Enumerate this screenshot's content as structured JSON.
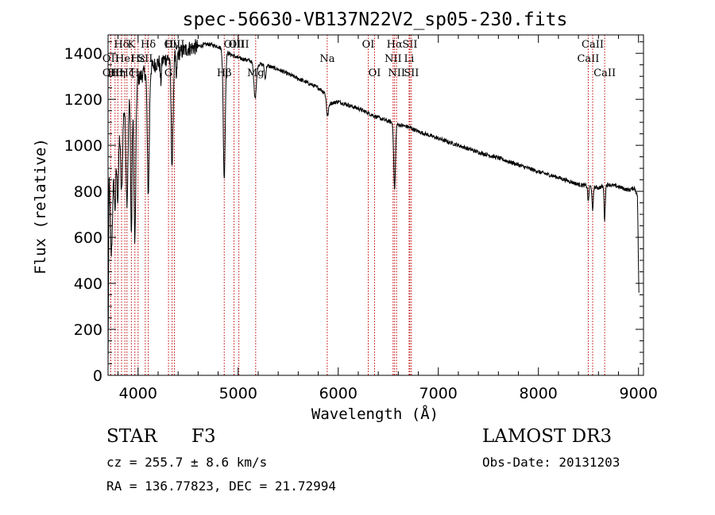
{
  "chart_data": {
    "type": "line",
    "title": "spec-56630-VB137N22V2_sp05-230.fits",
    "xlabel": "Wavelength (Å)",
    "ylabel": "Flux (relative)",
    "xlim": [
      3700,
      9050
    ],
    "ylim": [
      0,
      1480
    ],
    "xticks": [
      4000,
      5000,
      6000,
      7000,
      8000,
      9000
    ],
    "yticks": [
      0,
      200,
      400,
      600,
      800,
      1000,
      1200,
      1400
    ],
    "line_color": "#000000",
    "marker_color": "#c00000",
    "continuum": [
      [
        3700,
        30
      ],
      [
        3710,
        880
      ],
      [
        3730,
        720
      ],
      [
        3760,
        950
      ],
      [
        3800,
        1100
      ],
      [
        3850,
        1160
      ],
      [
        3900,
        1200
      ],
      [
        3950,
        1240
      ],
      [
        4000,
        1290
      ],
      [
        4100,
        1330
      ],
      [
        4200,
        1360
      ],
      [
        4300,
        1380
      ],
      [
        4400,
        1400
      ],
      [
        4500,
        1420
      ],
      [
        4600,
        1430
      ],
      [
        4700,
        1440
      ],
      [
        4800,
        1430
      ],
      [
        4900,
        1400
      ],
      [
        5000,
        1380
      ],
      [
        5100,
        1370
      ],
      [
        5200,
        1355
      ],
      [
        5300,
        1345
      ],
      [
        5400,
        1330
      ],
      [
        5500,
        1310
      ],
      [
        5600,
        1290
      ],
      [
        5700,
        1270
      ],
      [
        5800,
        1250
      ],
      [
        5880,
        1225
      ],
      [
        5900,
        1180
      ],
      [
        6000,
        1190
      ],
      [
        6100,
        1175
      ],
      [
        6200,
        1160
      ],
      [
        6300,
        1140
      ],
      [
        6400,
        1120
      ],
      [
        6500,
        1105
      ],
      [
        6600,
        1090
      ],
      [
        6700,
        1080
      ],
      [
        6800,
        1060
      ],
      [
        6900,
        1045
      ],
      [
        7000,
        1030
      ],
      [
        7200,
        1000
      ],
      [
        7400,
        970
      ],
      [
        7600,
        945
      ],
      [
        7800,
        915
      ],
      [
        8000,
        885
      ],
      [
        8200,
        860
      ],
      [
        8400,
        830
      ],
      [
        8600,
        815
      ],
      [
        8700,
        830
      ],
      [
        8800,
        820
      ],
      [
        8900,
        805
      ],
      [
        8960,
        815
      ],
      [
        8990,
        780
      ],
      [
        9000,
        470
      ],
      [
        9005,
        330
      ]
    ],
    "absorption": [
      {
        "x": 3735,
        "depth": 220,
        "width": 14
      },
      {
        "x": 3770,
        "depth": 260,
        "width": 12
      },
      {
        "x": 3798,
        "depth": 320,
        "width": 12
      },
      {
        "x": 3835,
        "depth": 350,
        "width": 14
      },
      {
        "x": 3889,
        "depth": 430,
        "width": 14
      },
      {
        "x": 3933,
        "depth": 620,
        "width": 10
      },
      {
        "x": 3968,
        "depth": 680,
        "width": 13
      },
      {
        "x": 4102,
        "depth": 540,
        "width": 14
      },
      {
        "x": 4227,
        "depth": 90,
        "width": 8
      },
      {
        "x": 4340,
        "depth": 470,
        "width": 14
      },
      {
        "x": 4383,
        "depth": 110,
        "width": 8
      },
      {
        "x": 4861,
        "depth": 560,
        "width": 14
      },
      {
        "x": 5170,
        "depth": 150,
        "width": 18
      },
      {
        "x": 5270,
        "depth": 60,
        "width": 10
      },
      {
        "x": 5890,
        "depth": 70,
        "width": 14
      },
      {
        "x": 6563,
        "depth": 290,
        "width": 12
      },
      {
        "x": 8498,
        "depth": 70,
        "width": 8
      },
      {
        "x": 8542,
        "depth": 110,
        "width": 8
      },
      {
        "x": 8662,
        "depth": 150,
        "width": 8
      }
    ],
    "line_markers": [
      {
        "x": 3727,
        "label": "OII",
        "row": 1
      },
      {
        "x": 3727,
        "label": "OII",
        "row": 2
      },
      {
        "x": 3770,
        "label": "Hθ",
        "row": 2
      },
      {
        "x": 3798,
        "label": "Hη",
        "row": 2
      },
      {
        "x": 3835,
        "label": "Hδ",
        "row": 0
      },
      {
        "x": 3868,
        "label": "HeI",
        "row": 1
      },
      {
        "x": 3889,
        "label": "Hζ",
        "row": 2
      },
      {
        "x": 3933,
        "label": "K",
        "row": 0
      },
      {
        "x": 3968,
        "label": "H",
        "row": 2
      },
      {
        "x": 4000,
        "label": "Hε",
        "row": 1
      },
      {
        "x": 4072,
        "label": "SII",
        "row": 1
      },
      {
        "x": 4102,
        "label": "Hδ",
        "row": 0
      },
      {
        "x": 4304,
        "label": "G",
        "row": 2
      },
      {
        "x": 4340,
        "label": "Hγ",
        "row": 0
      },
      {
        "x": 4363,
        "label": "OIII",
        "row": 0
      },
      {
        "x": 4861,
        "label": "Hβ",
        "row": 2
      },
      {
        "x": 4959,
        "label": "OIII",
        "row": 0
      },
      {
        "x": 5007,
        "label": "OIII",
        "row": 0
      },
      {
        "x": 5175,
        "label": "Mg",
        "row": 2
      },
      {
        "x": 5890,
        "label": "Na",
        "row": 1
      },
      {
        "x": 6300,
        "label": "OI",
        "row": 0
      },
      {
        "x": 6363,
        "label": "OI",
        "row": 2
      },
      {
        "x": 6548,
        "label": "NII",
        "row": 1
      },
      {
        "x": 6563,
        "label": "Hα",
        "row": 0
      },
      {
        "x": 6583,
        "label": "NII",
        "row": 2
      },
      {
        "x": 6708,
        "label": "Li",
        "row": 1
      },
      {
        "x": 6716,
        "label": "SII",
        "row": 0
      },
      {
        "x": 6731,
        "label": "SII",
        "row": 2
      },
      {
        "x": 8498,
        "label": "CaII",
        "row": 1
      },
      {
        "x": 8542,
        "label": "CaII",
        "row": 0
      },
      {
        "x": 8662,
        "label": "CaII",
        "row": 2
      }
    ]
  },
  "info": {
    "object_class": "STAR",
    "subclass": "F3",
    "survey": "LAMOST DR3",
    "cz": "cz = 255.7 ± 8.6 km/s",
    "obs_date": "Obs-Date: 20131203",
    "radec": "RA = 136.77823, DEC =  21.72994"
  }
}
